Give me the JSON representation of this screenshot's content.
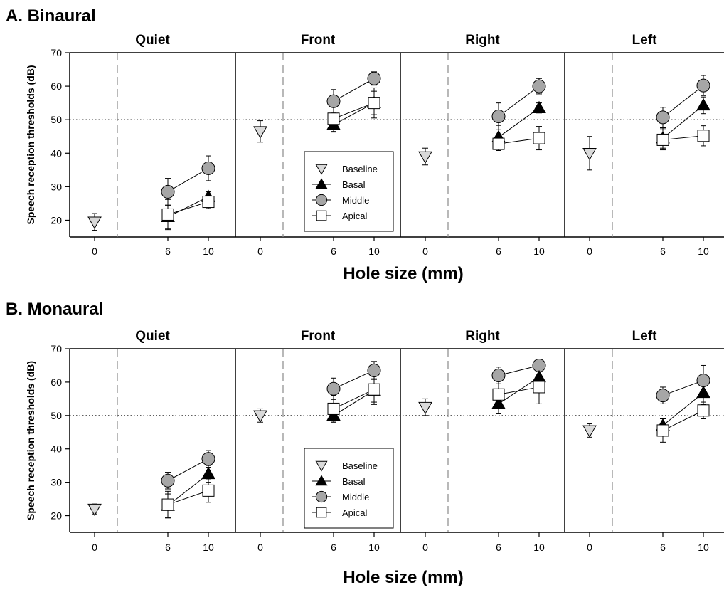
{
  "chart_data": [
    {
      "type": "line",
      "title": "A. Binaural",
      "xlabel": "Hole size (mm)",
      "ylabel": "Speech reception thresholds (dB)",
      "ylim": [
        15,
        70
      ],
      "yticks": [
        20,
        30,
        40,
        50,
        60,
        70
      ],
      "xticks": [
        0,
        6,
        10
      ],
      "reference_line_y": 50,
      "legend": {
        "location": "in Front panel",
        "entries": [
          "Baseline",
          "Basal",
          "Middle",
          "Apical"
        ]
      },
      "panels": [
        {
          "name": "Quiet",
          "baseline": {
            "x": 0,
            "y": 19.5,
            "err": 2.5
          },
          "series": [
            {
              "name": "Basal",
              "x": [
                6,
                10
              ],
              "y": [
                21.0,
                27.0
              ],
              "err": [
                3.5,
                1.5
              ]
            },
            {
              "name": "Middle",
              "x": [
                6,
                10
              ],
              "y": [
                28.5,
                35.5
              ],
              "err": [
                4.0,
                3.7
              ]
            },
            {
              "name": "Apical",
              "x": [
                6,
                10
              ],
              "y": [
                21.7,
                25.5
              ],
              "err": [
                4.5,
                2.0
              ]
            }
          ]
        },
        {
          "name": "Front",
          "baseline": {
            "x": 0,
            "y": 46.5,
            "err": 3.2
          },
          "series": [
            {
              "name": "Basal",
              "x": [
                6,
                10
              ],
              "y": [
                48.5,
                55.0
              ],
              "err": [
                2.0,
                3.5
              ]
            },
            {
              "name": "Middle",
              "x": [
                6,
                10
              ],
              "y": [
                55.5,
                62.3
              ],
              "err": [
                3.5,
                2.0
              ]
            },
            {
              "name": "Apical",
              "x": [
                6,
                10
              ],
              "y": [
                50.3,
                55.0
              ],
              "err": [
                4.0,
                4.5
              ]
            }
          ]
        },
        {
          "name": "Right",
          "baseline": {
            "x": 0,
            "y": 39.0,
            "err": 2.5
          },
          "series": [
            {
              "name": "Basal",
              "x": [
                6,
                10
              ],
              "y": [
                44.8,
                53.5
              ],
              "err": [
                3.5,
                1.5
              ]
            },
            {
              "name": "Middle",
              "x": [
                6,
                10
              ],
              "y": [
                51.0,
                60.0
              ],
              "err": [
                4.0,
                2.3
              ]
            },
            {
              "name": "Apical",
              "x": [
                6,
                10
              ],
              "y": [
                42.8,
                44.5
              ],
              "err": [
                2.0,
                3.5
              ]
            }
          ]
        },
        {
          "name": "Left",
          "baseline": {
            "x": 0,
            "y": 40.0,
            "err": 5.0
          },
          "series": [
            {
              "name": "Basal",
              "x": [
                6,
                10
              ],
              "y": [
                44.5,
                54.3
              ],
              "err": [
                3.0,
                2.5
              ]
            },
            {
              "name": "Middle",
              "x": [
                6,
                10
              ],
              "y": [
                50.7,
                60.2
              ],
              "err": [
                3.0,
                3.0
              ]
            },
            {
              "name": "Apical",
              "x": [
                6,
                10
              ],
              "y": [
                44.0,
                45.2
              ],
              "err": [
                3.0,
                3.0
              ]
            }
          ]
        }
      ]
    },
    {
      "type": "line",
      "title": "B. Monaural",
      "xlabel": "Hole size (mm)",
      "ylabel": "Speech reception thresholds (dB)",
      "ylim": [
        15,
        70
      ],
      "yticks": [
        20,
        30,
        40,
        50,
        60,
        70
      ],
      "xticks": [
        0,
        6,
        10
      ],
      "reference_line_y": 50,
      "legend": {
        "location": "in Front panel",
        "entries": [
          "Baseline",
          "Basal",
          "Middle",
          "Apical"
        ]
      },
      "panels": [
        {
          "name": "Quiet",
          "baseline": {
            "x": 0,
            "y": 22.0,
            "err": 1.5
          },
          "series": [
            {
              "name": "Basal",
              "x": [
                6,
                10
              ],
              "y": [
                23.0,
                32.5
              ],
              "err": [
                3.5,
                2.5
              ]
            },
            {
              "name": "Middle",
              "x": [
                6,
                10
              ],
              "y": [
                30.5,
                37.0
              ],
              "err": [
                2.5,
                2.5
              ]
            },
            {
              "name": "Apical",
              "x": [
                6,
                10
              ],
              "y": [
                23.3,
                27.5
              ],
              "err": [
                4.0,
                3.5
              ]
            }
          ]
        },
        {
          "name": "Front",
          "baseline": {
            "x": 0,
            "y": 50.0,
            "err": 2.0
          },
          "series": [
            {
              "name": "Basal",
              "x": [
                6,
                10
              ],
              "y": [
                50.0,
                57.5
              ],
              "err": [
                2.0,
                3.5
              ]
            },
            {
              "name": "Middle",
              "x": [
                6,
                10
              ],
              "y": [
                58.0,
                63.5
              ],
              "err": [
                3.2,
                2.7
              ]
            },
            {
              "name": "Apical",
              "x": [
                6,
                10
              ],
              "y": [
                52.0,
                57.8
              ],
              "err": [
                4.0,
                4.5
              ]
            }
          ]
        },
        {
          "name": "Right",
          "baseline": {
            "x": 0,
            "y": 52.5,
            "err": 2.5
          },
          "series": [
            {
              "name": "Basal",
              "x": [
                6,
                10
              ],
              "y": [
                53.5,
                61.5
              ],
              "err": [
                3.0,
                2.5
              ]
            },
            {
              "name": "Middle",
              "x": [
                6,
                10
              ],
              "y": [
                62.0,
                65.0
              ],
              "err": [
                2.5,
                1.5
              ]
            },
            {
              "name": "Apical",
              "x": [
                6,
                10
              ],
              "y": [
                56.3,
                58.5
              ],
              "err": [
                4.0,
                5.0
              ]
            }
          ]
        },
        {
          "name": "Left",
          "baseline": {
            "x": 0,
            "y": 45.5,
            "err": 2.0
          },
          "series": [
            {
              "name": "Basal",
              "x": [
                6,
                10
              ],
              "y": [
                47.0,
                56.8
              ],
              "err": [
                2.0,
                3.5
              ]
            },
            {
              "name": "Middle",
              "x": [
                6,
                10
              ],
              "y": [
                56.0,
                60.5
              ],
              "err": [
                2.5,
                4.5
              ]
            },
            {
              "name": "Apical",
              "x": [
                6,
                10
              ],
              "y": [
                45.5,
                51.5
              ],
              "err": [
                3.5,
                2.5
              ]
            }
          ]
        }
      ]
    }
  ]
}
